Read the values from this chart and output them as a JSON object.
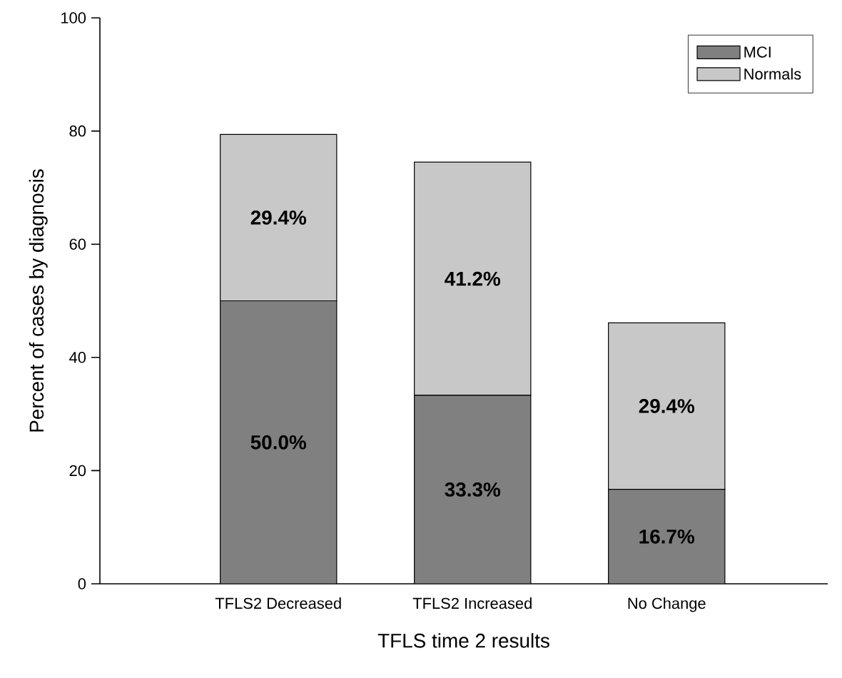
{
  "chart_data": {
    "type": "bar",
    "stacked": true,
    "xlabel": "TFLS time 2 results",
    "ylabel": "Percent of cases by diagnosis",
    "categories": [
      "TFLS2 Decreased",
      "TFLS2 Increased",
      "No Change"
    ],
    "series": [
      {
        "name": "MCI",
        "color": "#808080",
        "values": [
          50.0,
          33.3,
          16.7
        ],
        "value_labels": [
          "50.0%",
          "33.3%",
          "16.7%"
        ]
      },
      {
        "name": "Normals",
        "color": "#c8c8c8",
        "values": [
          29.4,
          41.2,
          29.4
        ],
        "value_labels": [
          "29.4%",
          "41.2%",
          "29.4%"
        ]
      }
    ],
    "ylim": [
      0,
      100
    ],
    "yticks": [
      0,
      20,
      40,
      60,
      80,
      100
    ],
    "legend": "top right",
    "grid": false
  }
}
